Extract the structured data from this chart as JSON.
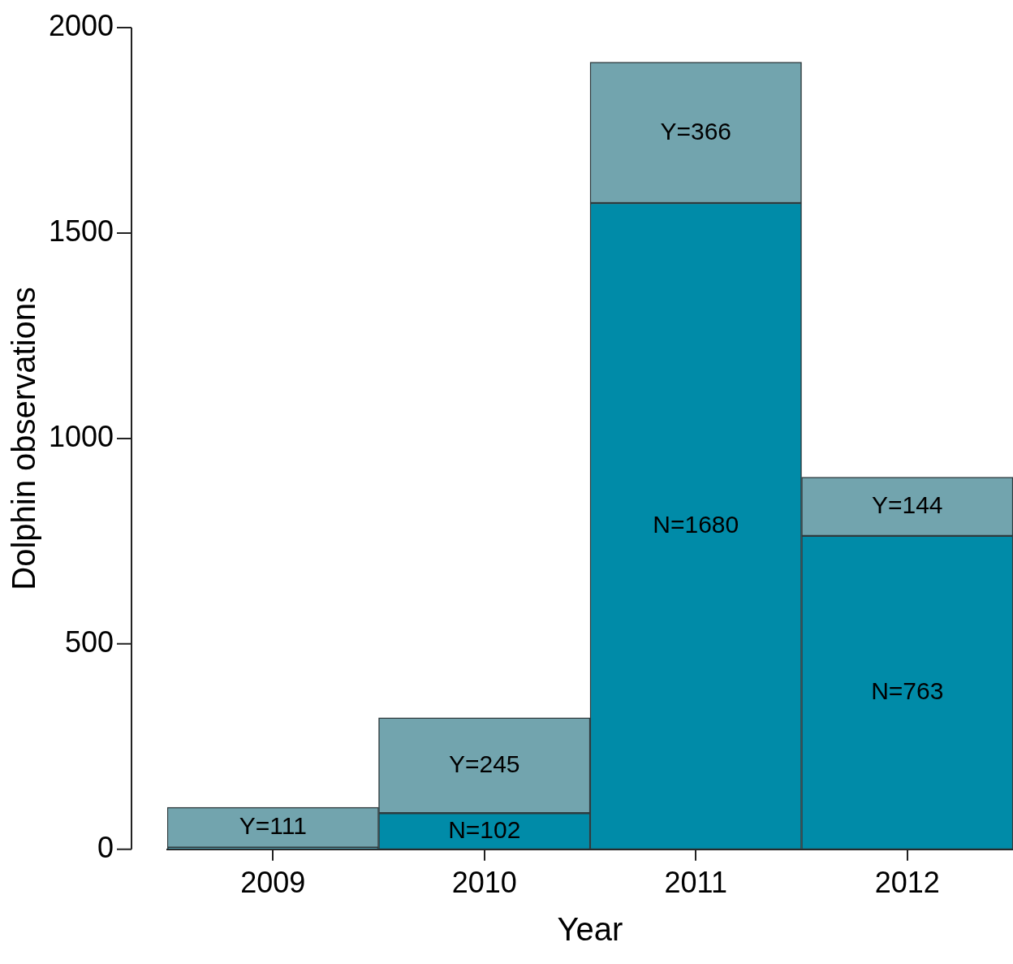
{
  "chart_data": {
    "type": "bar",
    "xlabel": "Year",
    "ylabel": "Dolphin observations",
    "categories": [
      "2009",
      "2010",
      "2011",
      "2012"
    ],
    "stacked": true,
    "ylim": [
      0,
      2000
    ],
    "yticks": [
      0,
      500,
      1000,
      1500,
      2000
    ],
    "grid": false,
    "legend": false,
    "series": [
      {
        "color": "#008ba8",
        "values": [
          4,
          88,
          1573,
          763
        ]
      },
      {
        "color": "#72a4ae",
        "values": [
          98,
          232,
          343,
          143
        ]
      }
    ],
    "annotations": [
      "Y=111",
      "N=102",
      "Y=245",
      "N=1680",
      "Y=366",
      "N=763",
      "Y=144"
    ]
  }
}
